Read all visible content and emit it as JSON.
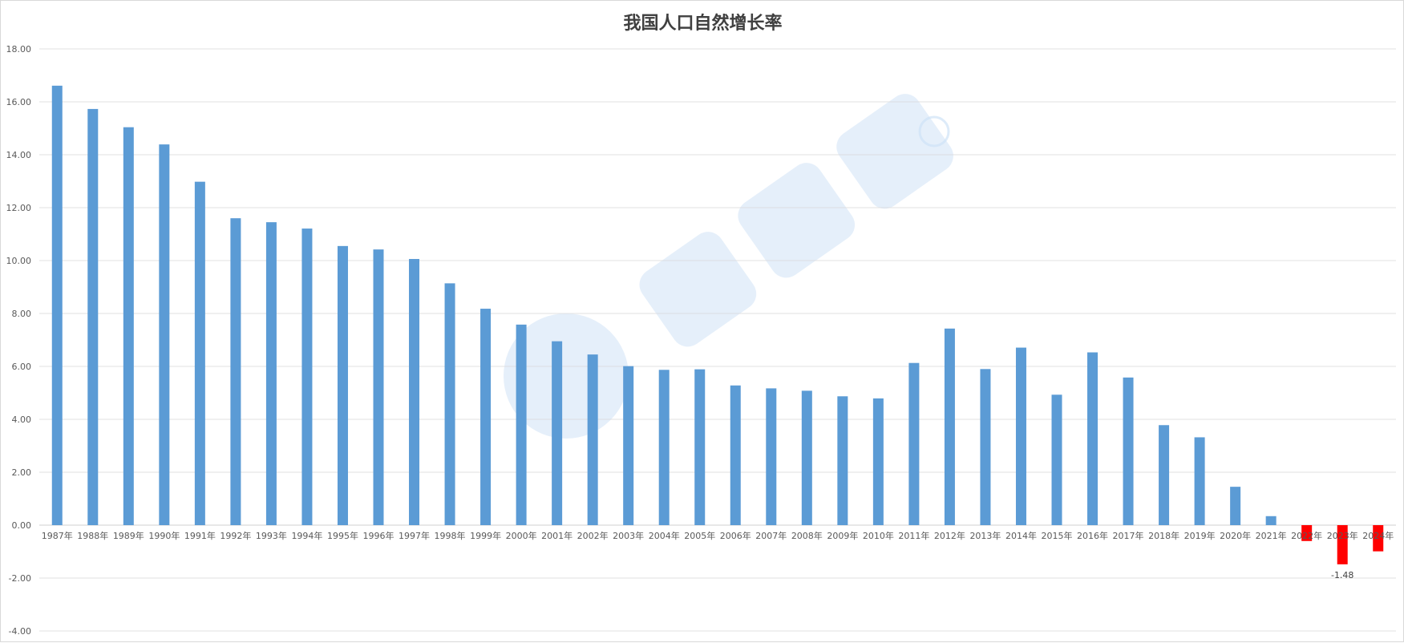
{
  "chart_data": {
    "type": "bar",
    "title": "我国人口自然增长率",
    "xlabel": "",
    "ylabel": "",
    "ylim": [
      -4,
      18
    ],
    "y_ticks": [
      "-4.00",
      "-2.00",
      "0.00",
      "2.00",
      "4.00",
      "6.00",
      "8.00",
      "10.00",
      "12.00",
      "14.00",
      "16.00",
      "18.00"
    ],
    "grid": true,
    "legend": "none",
    "categories": [
      "1987年",
      "1988年",
      "1989年",
      "1990年",
      "1991年",
      "1992年",
      "1993年",
      "1994年",
      "1995年",
      "1996年",
      "1997年",
      "1998年",
      "1999年",
      "2000年",
      "2001年",
      "2002年",
      "2003年",
      "2004年",
      "2005年",
      "2006年",
      "2007年",
      "2008年",
      "2009年",
      "2010年",
      "2011年",
      "2012年",
      "2013年",
      "2014年",
      "2015年",
      "2016年",
      "2017年",
      "2018年",
      "2019年",
      "2020年",
      "2021年",
      "2022年",
      "2023年",
      "2024年"
    ],
    "values": [
      16.61,
      15.73,
      15.04,
      14.39,
      12.98,
      11.6,
      11.45,
      11.21,
      10.55,
      10.42,
      10.06,
      9.14,
      8.18,
      7.58,
      6.95,
      6.45,
      6.01,
      5.87,
      5.89,
      5.28,
      5.17,
      5.08,
      4.87,
      4.79,
      6.13,
      7.43,
      5.9,
      6.71,
      4.93,
      6.53,
      5.58,
      3.78,
      3.32,
      1.45,
      0.34,
      -0.6,
      -1.48,
      -0.99
    ],
    "data_labels": [
      {
        "category": "2023年",
        "text": "-1.48"
      }
    ],
    "colors": {
      "positive": "#5b9bd5",
      "negative": "#ff0000",
      "grid": "#d9d9d9"
    }
  }
}
